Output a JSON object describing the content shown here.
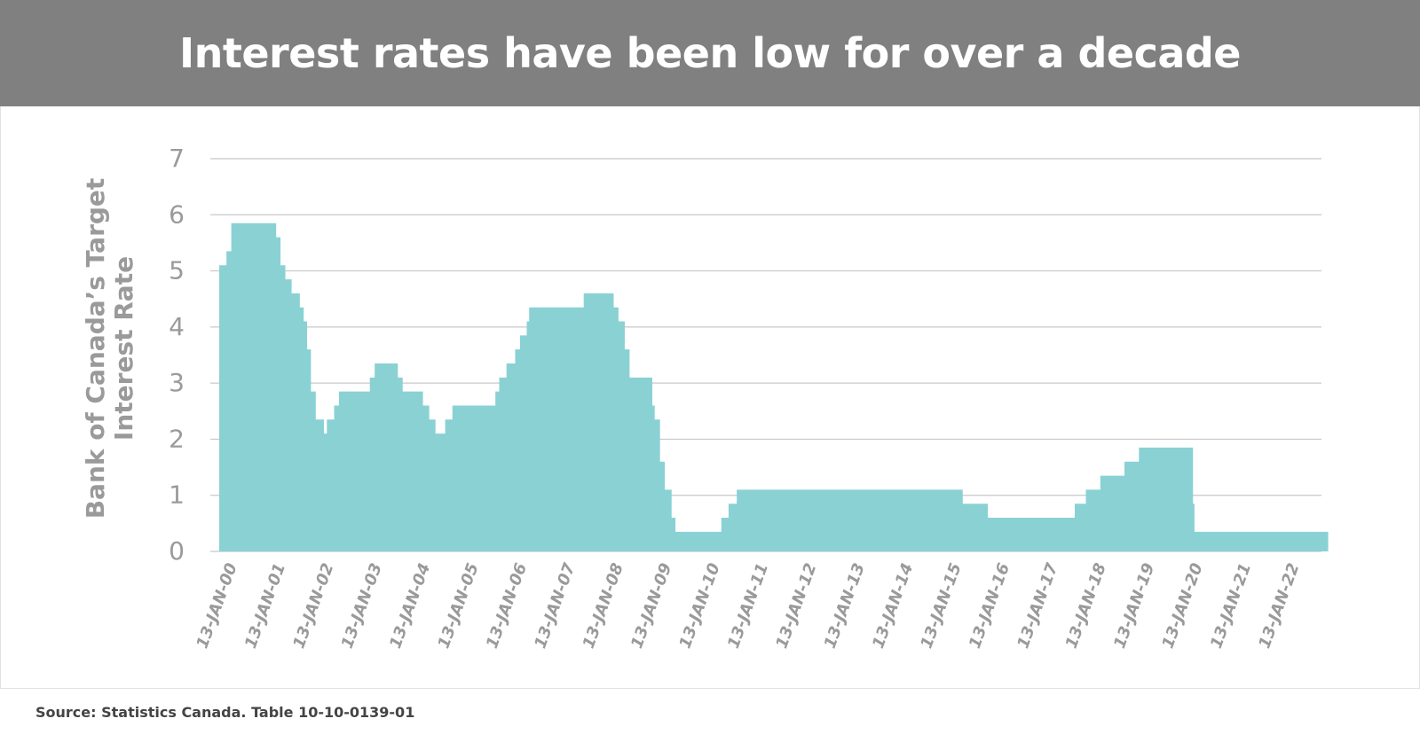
{
  "header": {
    "title": "Interest rates have been low for over a decade"
  },
  "footer": {
    "source": "Source: Statistics Canada. Table 10-10-0139-01"
  },
  "colors": {
    "header_bg": "#808080",
    "area_fill": "#8ad1d4",
    "grid": "#c8c8c8",
    "text": "#9a9a9a"
  },
  "chart_data": {
    "type": "area",
    "title": "Interest rates have been low for over a decade",
    "ylabel": "Bank of Canada’s Target Interest Rate",
    "ylabel_lines": [
      "Bank of Canada’s Target",
      "Interest Rate"
    ],
    "xlabel": "",
    "ylim": [
      0,
      7
    ],
    "yticks": [
      0,
      1,
      2,
      3,
      4,
      5,
      6,
      7
    ],
    "xlim": [
      2000.0,
      2023.2
    ],
    "xticks": [
      {
        "label": "13-JAN-00",
        "x": 2000
      },
      {
        "label": "13-JAN-01",
        "x": 2001
      },
      {
        "label": "13-JAN-02",
        "x": 2002
      },
      {
        "label": "13-JAN-03",
        "x": 2003
      },
      {
        "label": "13-JAN-04",
        "x": 2004
      },
      {
        "label": "13-JAN-05",
        "x": 2005
      },
      {
        "label": "13-JAN-06",
        "x": 2006
      },
      {
        "label": "13-JAN-07",
        "x": 2007
      },
      {
        "label": "13-JAN-08",
        "x": 2008
      },
      {
        "label": "13-JAN-09",
        "x": 2009
      },
      {
        "label": "13-JAN-10",
        "x": 2010
      },
      {
        "label": "13-JAN-11",
        "x": 2011
      },
      {
        "label": "13-JAN-12",
        "x": 2012
      },
      {
        "label": "13-JAN-13",
        "x": 2013
      },
      {
        "label": "13-JAN-14",
        "x": 2014
      },
      {
        "label": "13-JAN-15",
        "x": 2015
      },
      {
        "label": "13-JAN-16",
        "x": 2016
      },
      {
        "label": "13-JAN-17",
        "x": 2017
      },
      {
        "label": "13-JAN-18",
        "x": 2018
      },
      {
        "label": "13-JAN-19",
        "x": 2019
      },
      {
        "label": "13-JAN-20",
        "x": 2020
      },
      {
        "label": "13-JAN-21",
        "x": 2021
      },
      {
        "label": "13-JAN-22",
        "x": 2022
      }
    ],
    "grid": true,
    "series": [
      {
        "step": true,
        "points": [
          {
            "x": 2000.0,
            "y": 5.1
          },
          {
            "x": 2000.15,
            "y": 5.35
          },
          {
            "x": 2000.25,
            "y": 5.85
          },
          {
            "x": 2001.18,
            "y": 5.6
          },
          {
            "x": 2001.27,
            "y": 5.1
          },
          {
            "x": 2001.37,
            "y": 4.85
          },
          {
            "x": 2001.5,
            "y": 4.6
          },
          {
            "x": 2001.67,
            "y": 4.35
          },
          {
            "x": 2001.75,
            "y": 4.1
          },
          {
            "x": 2001.82,
            "y": 3.6
          },
          {
            "x": 2001.9,
            "y": 2.85
          },
          {
            "x": 2002.0,
            "y": 2.35
          },
          {
            "x": 2002.17,
            "y": 2.1
          },
          {
            "x": 2002.23,
            "y": 2.35
          },
          {
            "x": 2002.38,
            "y": 2.6
          },
          {
            "x": 2002.48,
            "y": 2.85
          },
          {
            "x": 2003.12,
            "y": 3.1
          },
          {
            "x": 2003.22,
            "y": 3.35
          },
          {
            "x": 2003.7,
            "y": 3.1
          },
          {
            "x": 2003.8,
            "y": 2.85
          },
          {
            "x": 2004.22,
            "y": 2.6
          },
          {
            "x": 2004.35,
            "y": 2.35
          },
          {
            "x": 2004.48,
            "y": 2.1
          },
          {
            "x": 2004.68,
            "y": 2.35
          },
          {
            "x": 2004.83,
            "y": 2.6
          },
          {
            "x": 2005.72,
            "y": 2.85
          },
          {
            "x": 2005.8,
            "y": 3.1
          },
          {
            "x": 2005.95,
            "y": 3.35
          },
          {
            "x": 2006.13,
            "y": 3.6
          },
          {
            "x": 2006.23,
            "y": 3.85
          },
          {
            "x": 2006.37,
            "y": 4.1
          },
          {
            "x": 2006.42,
            "y": 4.35
          },
          {
            "x": 2007.55,
            "y": 4.6
          },
          {
            "x": 2008.17,
            "y": 4.35
          },
          {
            "x": 2008.27,
            "y": 4.1
          },
          {
            "x": 2008.4,
            "y": 3.6
          },
          {
            "x": 2008.5,
            "y": 3.1
          },
          {
            "x": 2008.97,
            "y": 2.6
          },
          {
            "x": 2009.02,
            "y": 2.35
          },
          {
            "x": 2009.13,
            "y": 1.6
          },
          {
            "x": 2009.23,
            "y": 1.1
          },
          {
            "x": 2009.37,
            "y": 0.6
          },
          {
            "x": 2009.45,
            "y": 0.35
          },
          {
            "x": 2010.4,
            "y": 0.6
          },
          {
            "x": 2010.55,
            "y": 0.85
          },
          {
            "x": 2010.72,
            "y": 1.1
          },
          {
            "x": 2015.4,
            "y": 0.85
          },
          {
            "x": 2015.92,
            "y": 0.6
          },
          {
            "x": 2017.72,
            "y": 0.85
          },
          {
            "x": 2017.95,
            "y": 1.1
          },
          {
            "x": 2018.25,
            "y": 1.35
          },
          {
            "x": 2018.75,
            "y": 1.6
          },
          {
            "x": 2019.05,
            "y": 1.85
          },
          {
            "x": 2020.17,
            "y": 0.85
          },
          {
            "x": 2020.2,
            "y": 0.35
          },
          {
            "x": 2022.97,
            "y": 0.35
          }
        ]
      }
    ]
  }
}
